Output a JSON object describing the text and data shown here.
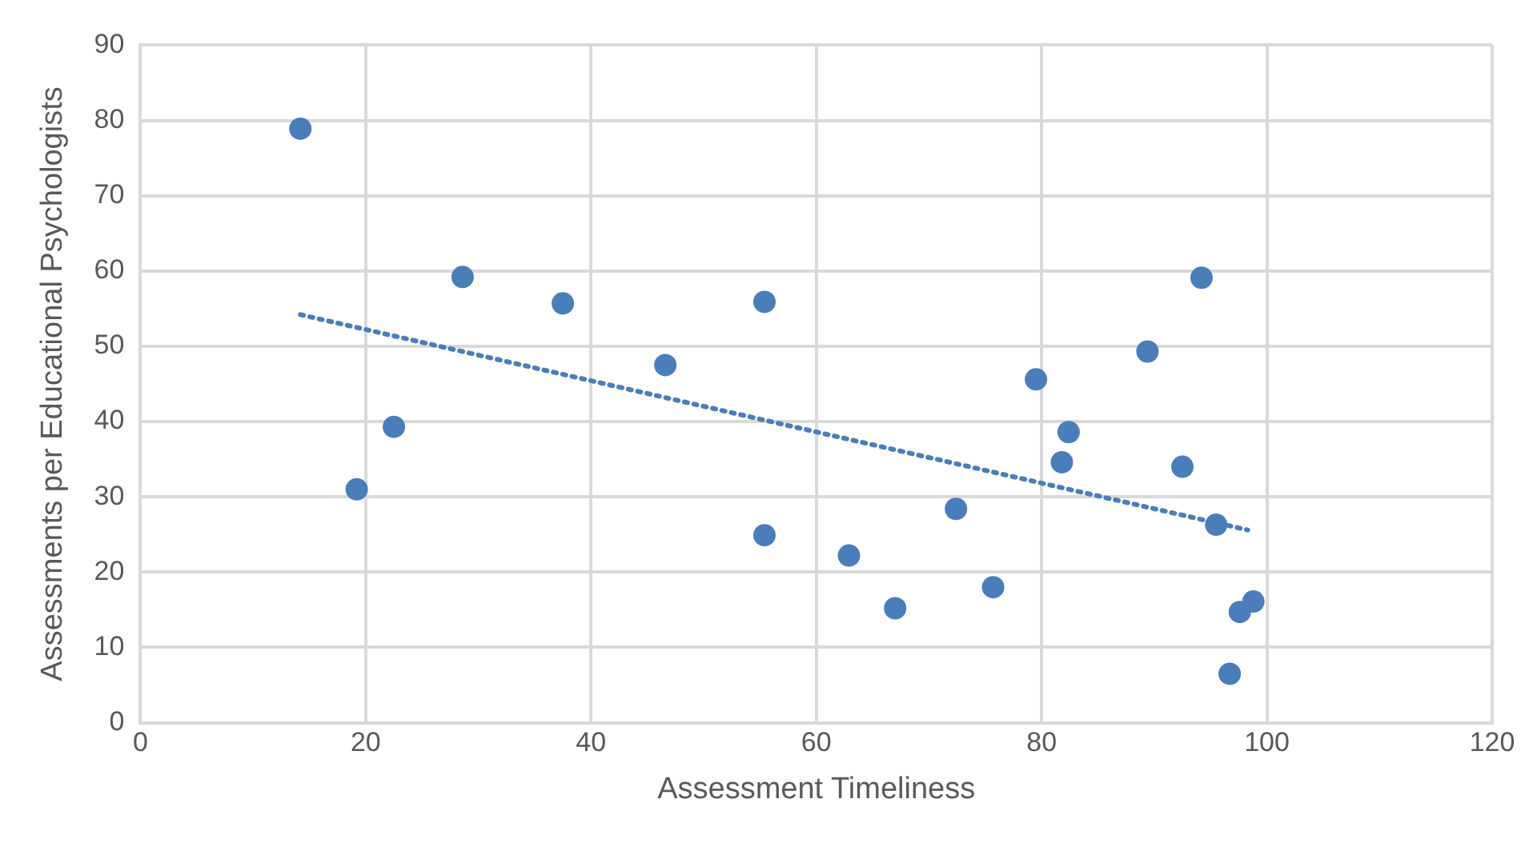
{
  "chart_data": {
    "type": "scatter",
    "xlabel": "Assessment Timeliness",
    "ylabel": "Assessments per Educational Psychologists",
    "xlim": [
      0,
      120
    ],
    "xticks": [
      0,
      20,
      40,
      60,
      80,
      100,
      120
    ],
    "ylim": [
      0,
      90
    ],
    "yticks": [
      0,
      10,
      20,
      30,
      40,
      50,
      60,
      70,
      80,
      90
    ],
    "grid": true,
    "legend": false,
    "marker": "circle",
    "series": [
      {
        "type": "scatter",
        "color": "#4a7ebb",
        "x": [
          14.2,
          28.6,
          37.5,
          55.4,
          46.6,
          22.5,
          19.2,
          55.4,
          94.2,
          89.4,
          79.5,
          82.4,
          81.8,
          92.5,
          72.4,
          95.5,
          62.9,
          75.7,
          67.0,
          98.8,
          97.6,
          96.7
        ],
        "values": [
          78.9,
          59.2,
          55.7,
          55.9,
          47.5,
          39.3,
          31.0,
          24.9,
          59.1,
          49.3,
          45.6,
          38.6,
          34.6,
          34.0,
          28.4,
          26.3,
          22.2,
          18.0,
          15.2,
          16.1,
          14.7,
          6.5
        ]
      },
      {
        "type": "line",
        "color": "#4a7ebb",
        "line_style": "dotted",
        "marker": "none",
        "x": [
          14.2,
          98.3
        ],
        "values": [
          54.2,
          25.6
        ]
      }
    ]
  }
}
